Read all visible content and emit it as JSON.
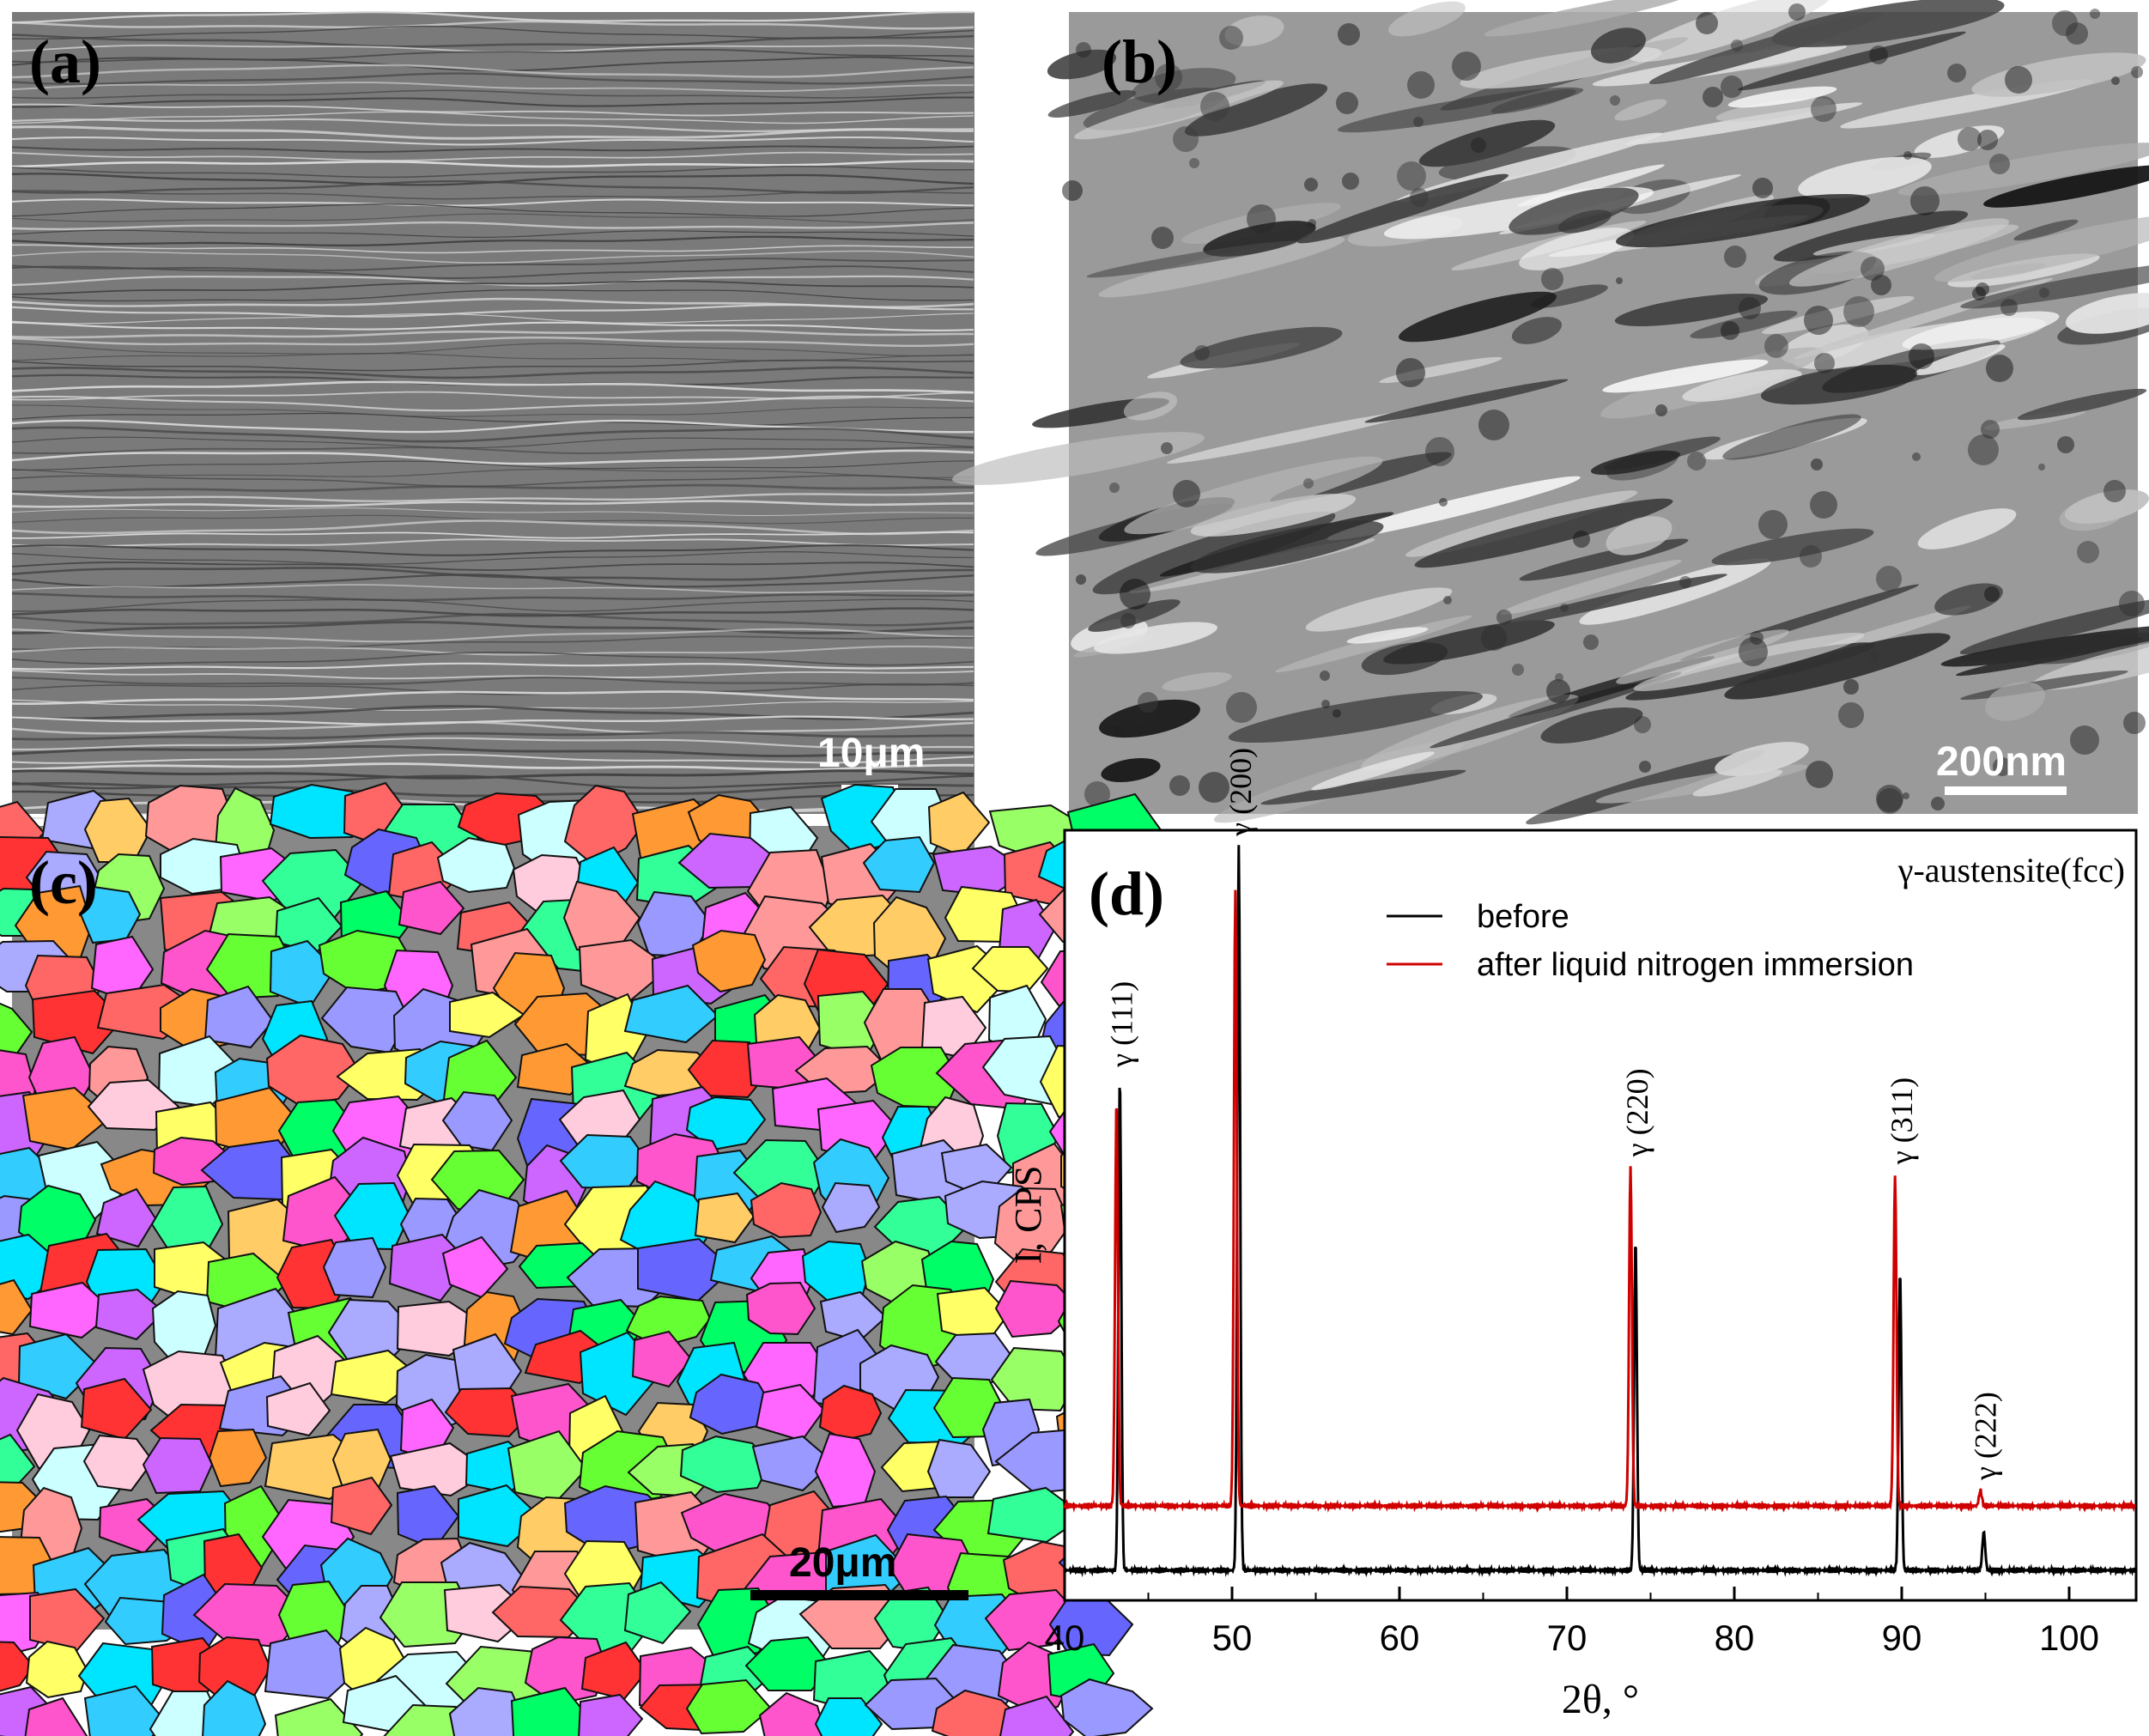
{
  "panels": {
    "a": {
      "label": "(a)",
      "scale_bar": "10μm"
    },
    "b": {
      "label": "(b)",
      "scale_bar": "200nm"
    },
    "c": {
      "label": "(c)",
      "scale_bar": "20μm"
    },
    "d": {
      "label": "(d)"
    }
  },
  "chart_data": {
    "type": "line",
    "title": "γ-austensite(fcc)",
    "xlabel": "2θ, °",
    "ylabel": "I, CPS",
    "xlim": [
      40,
      104
    ],
    "x_ticks": [
      40,
      50,
      60,
      70,
      80,
      90,
      100
    ],
    "y_ticks_shown": false,
    "legend_placement": "top-center",
    "series": [
      {
        "name": "before",
        "color": "#000000",
        "peaks": [
          {
            "x": 43.3,
            "height": 0.64
          },
          {
            "x": 50.4,
            "height": 0.94
          },
          {
            "x": 74.1,
            "height": 0.43
          },
          {
            "x": 89.9,
            "height": 0.39
          },
          {
            "x": 94.9,
            "height": 0.05
          }
        ]
      },
      {
        "name": "after liquid nitrogen immersion",
        "color": "#d00000",
        "peaks": [
          {
            "x": 43.1,
            "height": 0.53
          },
          {
            "x": 50.2,
            "height": 0.8
          },
          {
            "x": 73.8,
            "height": 0.44
          },
          {
            "x": 89.6,
            "height": 0.43
          },
          {
            "x": 94.7,
            "height": 0.02
          }
        ]
      }
    ],
    "peak_labels": [
      {
        "text": "γ (111)",
        "x": 43.3
      },
      {
        "text": "γ (200)",
        "x": 50.4
      },
      {
        "text": "γ (220)",
        "x": 74.1
      },
      {
        "text": "γ (311)",
        "x": 89.9
      },
      {
        "text": "γ (222)",
        "x": 94.9
      }
    ]
  }
}
